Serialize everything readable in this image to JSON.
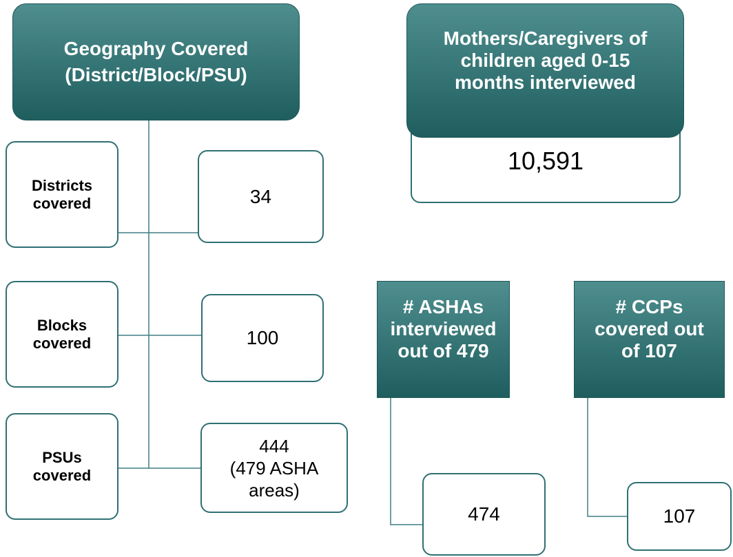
{
  "geography": {
    "title": "Geography Covered (District/Block/PSU)",
    "rows": [
      {
        "label": "Districts covered",
        "value": "34"
      },
      {
        "label": "Blocks covered",
        "value": "100"
      },
      {
        "label": "PSUs covered",
        "value": "444",
        "note": "(479 ASHA areas)"
      }
    ]
  },
  "mothers": {
    "title": "Mothers/Caregivers of children aged 0-15 months interviewed",
    "value": "10,591"
  },
  "ashas": {
    "title": "# ASHAs interviewed out of 479",
    "value": "474"
  },
  "ccps": {
    "title": "# CCPs covered out of 107",
    "value": "107"
  }
}
